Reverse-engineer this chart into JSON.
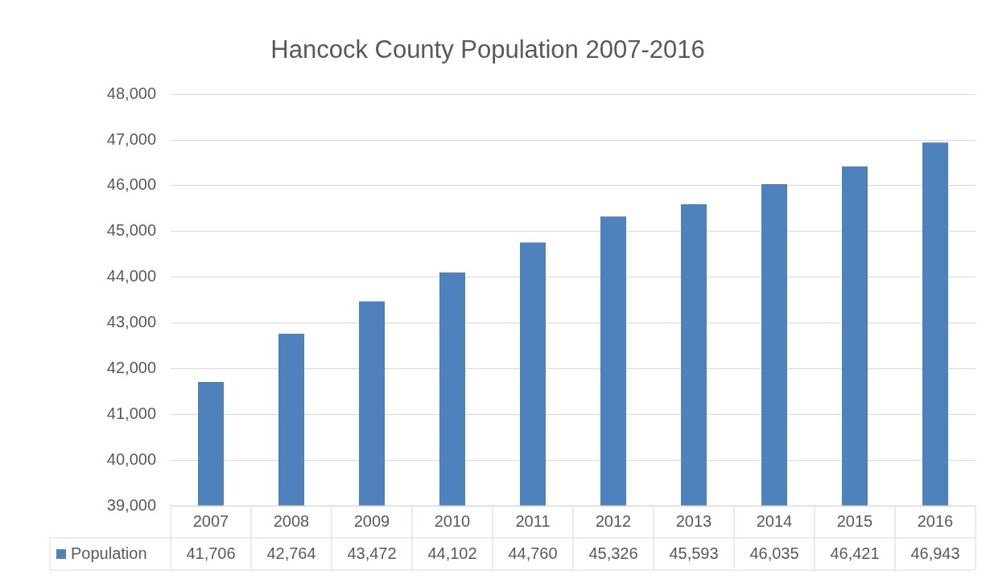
{
  "chart_data": {
    "type": "bar",
    "title": "Hancock County Population 2007-2016",
    "categories": [
      "2007",
      "2008",
      "2009",
      "2010",
      "2011",
      "2012",
      "2013",
      "2014",
      "2015",
      "2016"
    ],
    "series": [
      {
        "name": "Population",
        "color": "#4f81bd",
        "values": [
          41706,
          42764,
          43472,
          44102,
          44760,
          45326,
          45593,
          46035,
          46421,
          46943
        ],
        "value_labels": [
          "41,706",
          "42,764",
          "43,472",
          "44,102",
          "44,760",
          "45,326",
          "45,593",
          "46,035",
          "46,421",
          "46,943"
        ]
      }
    ],
    "ylim": [
      39000,
      48000
    ],
    "yticks": [
      {
        "value": 39000,
        "label": "39,000"
      },
      {
        "value": 40000,
        "label": "40,000"
      },
      {
        "value": 41000,
        "label": "41,000"
      },
      {
        "value": 42000,
        "label": "42,000"
      },
      {
        "value": 43000,
        "label": "43,000"
      },
      {
        "value": 44000,
        "label": "44,000"
      },
      {
        "value": 45000,
        "label": "45,000"
      },
      {
        "value": 46000,
        "label": "46,000"
      },
      {
        "value": 47000,
        "label": "47,000"
      },
      {
        "value": 48000,
        "label": "48,000"
      }
    ],
    "grid": "y",
    "legend": "bottom"
  }
}
